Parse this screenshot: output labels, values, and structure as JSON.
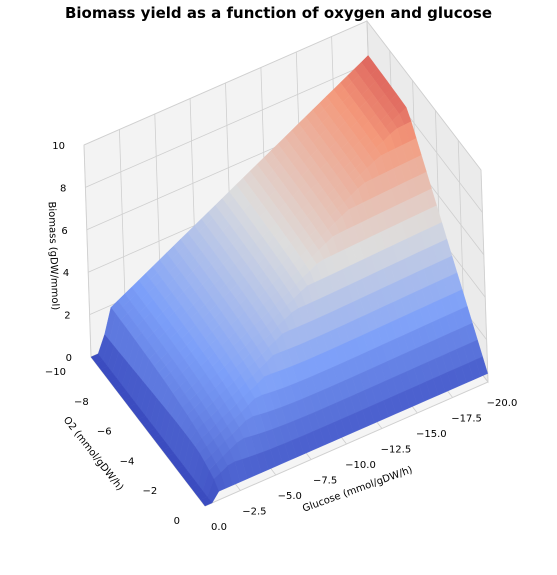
{
  "chart_data": {
    "type": "surface3d",
    "title": "Biomass yield as a function of oxygen and glucose",
    "xlabel": "Glucose (mmol/gDW/h)",
    "ylabel": "O2 (mmol/gDW/h)",
    "zlabel": "Biomass (gDW/mmol)",
    "xlim": [
      0,
      -20
    ],
    "ylim": [
      -10,
      0
    ],
    "zlim": [
      0,
      10
    ],
    "x_ticks": [
      "0.0",
      "−2.5",
      "−5.0",
      "−7.5",
      "−10.0",
      "−12.5",
      "−15.0",
      "−17.5",
      "−20.0"
    ],
    "y_ticks": [
      "−10",
      "−8",
      "−6",
      "−4",
      "−2",
      "0"
    ],
    "z_ticks": [
      "0",
      "2",
      "4",
      "6",
      "8",
      "10"
    ],
    "colormap": "coolwarm",
    "grid": true,
    "surface_description_points": [
      {
        "glucose": -20,
        "o2": 0,
        "biomass": 1.6
      },
      {
        "glucose": -20,
        "o2": -10,
        "biomass": 6.1
      },
      {
        "glucose": -10,
        "o2": -10,
        "biomass": 6.6
      },
      {
        "glucose": -2.5,
        "o2": -10,
        "biomass": 9.4
      },
      {
        "glucose": -1.5,
        "o2": -10,
        "biomass": 10.0
      },
      {
        "glucose": -1,
        "o2": 0,
        "biomass": 0.3
      }
    ]
  }
}
